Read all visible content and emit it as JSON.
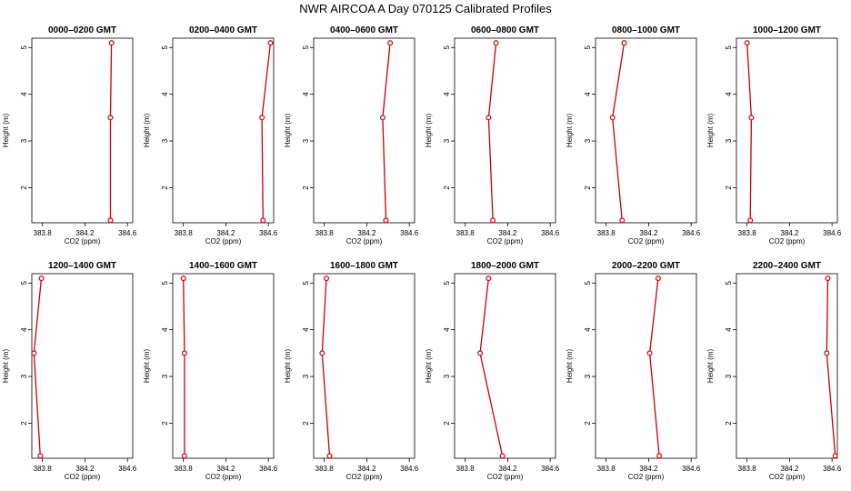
{
  "title": "NWR AIRCOA A  Day 070125  Calibrated Profiles",
  "colors": {
    "line": "#cc0000",
    "marker": "#dd0000",
    "axis": "#000000"
  },
  "chart_data": [
    {
      "type": "line",
      "title": "0000–0200 GMT",
      "xlabel": "CO2 (ppm)",
      "ylabel": "Height (m)",
      "xlim": [
        383.7,
        384.65
      ],
      "ylim": [
        1.25,
        5.2
      ],
      "xticks": [
        "383.8",
        "384.2",
        "384.6"
      ],
      "yticks": [
        "2",
        "3",
        "4",
        "5"
      ],
      "x": [
        384.45,
        384.44,
        384.44
      ],
      "y": [
        5.1,
        3.5,
        1.3
      ]
    },
    {
      "type": "line",
      "title": "0200–0400 GMT",
      "xlabel": "CO2 (ppm)",
      "ylabel": "Height (m)",
      "xlim": [
        383.7,
        384.65
      ],
      "ylim": [
        1.25,
        5.2
      ],
      "xticks": [
        "383.8",
        "384.2",
        "384.6"
      ],
      "yticks": [
        "2",
        "3",
        "4",
        "5"
      ],
      "x": [
        384.62,
        384.54,
        384.55
      ],
      "y": [
        5.1,
        3.5,
        1.3
      ]
    },
    {
      "type": "line",
      "title": "0400–0600 GMT",
      "xlabel": "CO2 (ppm)",
      "ylabel": "Height (m)",
      "xlim": [
        383.7,
        384.65
      ],
      "ylim": [
        1.25,
        5.2
      ],
      "xticks": [
        "383.8",
        "384.2",
        "384.6"
      ],
      "yticks": [
        "2",
        "3",
        "4",
        "5"
      ],
      "x": [
        384.42,
        384.35,
        384.38
      ],
      "y": [
        5.1,
        3.5,
        1.3
      ]
    },
    {
      "type": "line",
      "title": "0600–0800 GMT",
      "xlabel": "CO2 (ppm)",
      "ylabel": "Height (m)",
      "xlim": [
        383.7,
        384.65
      ],
      "ylim": [
        1.25,
        5.2
      ],
      "xticks": [
        "383.8",
        "384.2",
        "384.6"
      ],
      "yticks": [
        "2",
        "3",
        "4",
        "5"
      ],
      "x": [
        384.09,
        384.02,
        384.06
      ],
      "y": [
        5.1,
        3.5,
        1.3
      ]
    },
    {
      "type": "line",
      "title": "0800–1000 GMT",
      "xlabel": "CO2 (ppm)",
      "ylabel": "Height (m)",
      "xlim": [
        383.7,
        384.65
      ],
      "ylim": [
        1.25,
        5.2
      ],
      "xticks": [
        "383.8",
        "384.2",
        "384.6"
      ],
      "yticks": [
        "2",
        "3",
        "4",
        "5"
      ],
      "x": [
        383.97,
        383.86,
        383.95
      ],
      "y": [
        5.1,
        3.5,
        1.3
      ]
    },
    {
      "type": "line",
      "title": "1000–1200 GMT",
      "xlabel": "CO2 (ppm)",
      "ylabel": "Height (m)",
      "xlim": [
        383.7,
        384.65
      ],
      "ylim": [
        1.25,
        5.2
      ],
      "xticks": [
        "383.8",
        "384.2",
        "384.6"
      ],
      "yticks": [
        "2",
        "3",
        "4",
        "5"
      ],
      "x": [
        383.8,
        383.84,
        383.83
      ],
      "y": [
        5.1,
        3.5,
        1.3
      ]
    },
    {
      "type": "line",
      "title": "1200–1400 GMT",
      "xlabel": "CO2 (ppm)",
      "ylabel": "Height (m)",
      "xlim": [
        383.7,
        384.65
      ],
      "ylim": [
        1.25,
        5.2
      ],
      "xticks": [
        "383.8",
        "384.2",
        "384.6"
      ],
      "yticks": [
        "2",
        "3",
        "4",
        "5"
      ],
      "x": [
        383.79,
        383.72,
        383.78
      ],
      "y": [
        5.1,
        3.5,
        1.3
      ]
    },
    {
      "type": "line",
      "title": "1400–1600 GMT",
      "xlabel": "CO2 (ppm)",
      "ylabel": "Height (m)",
      "xlim": [
        383.7,
        384.65
      ],
      "ylim": [
        1.25,
        5.2
      ],
      "xticks": [
        "383.8",
        "384.2",
        "384.6"
      ],
      "yticks": [
        "2",
        "3",
        "4",
        "5"
      ],
      "x": [
        383.8,
        383.81,
        383.81
      ],
      "y": [
        5.1,
        3.5,
        1.3
      ]
    },
    {
      "type": "line",
      "title": "1600–1800 GMT",
      "xlabel": "CO2 (ppm)",
      "ylabel": "Height (m)",
      "xlim": [
        383.7,
        384.65
      ],
      "ylim": [
        1.25,
        5.2
      ],
      "xticks": [
        "383.8",
        "384.2",
        "384.6"
      ],
      "yticks": [
        "2",
        "3",
        "4",
        "5"
      ],
      "x": [
        383.82,
        383.78,
        383.85
      ],
      "y": [
        5.1,
        3.5,
        1.3
      ]
    },
    {
      "type": "line",
      "title": "1800–2000 GMT",
      "xlabel": "CO2 (ppm)",
      "ylabel": "Height (m)",
      "xlim": [
        383.7,
        384.65
      ],
      "ylim": [
        1.25,
        5.2
      ],
      "xticks": [
        "383.8",
        "384.2",
        "384.6"
      ],
      "yticks": [
        "2",
        "3",
        "4",
        "5"
      ],
      "x": [
        384.02,
        383.94,
        384.15
      ],
      "y": [
        5.1,
        3.5,
        1.3
      ]
    },
    {
      "type": "line",
      "title": "2000–2200 GMT",
      "xlabel": "CO2 (ppm)",
      "ylabel": "Height (m)",
      "xlim": [
        383.7,
        384.65
      ],
      "ylim": [
        1.25,
        5.2
      ],
      "xticks": [
        "383.8",
        "384.2",
        "384.6"
      ],
      "yticks": [
        "2",
        "3",
        "4",
        "5"
      ],
      "x": [
        384.29,
        384.21,
        384.3
      ],
      "y": [
        5.1,
        3.5,
        1.3
      ]
    },
    {
      "type": "line",
      "title": "2200–2400 GMT",
      "xlabel": "CO2 (ppm)",
      "ylabel": "Height (m)",
      "xlim": [
        383.7,
        384.65
      ],
      "ylim": [
        1.25,
        5.2
      ],
      "xticks": [
        "383.8",
        "384.2",
        "384.6"
      ],
      "yticks": [
        "2",
        "3",
        "4",
        "5"
      ],
      "x": [
        384.56,
        384.55,
        384.63
      ],
      "y": [
        5.1,
        3.5,
        1.3
      ]
    }
  ]
}
